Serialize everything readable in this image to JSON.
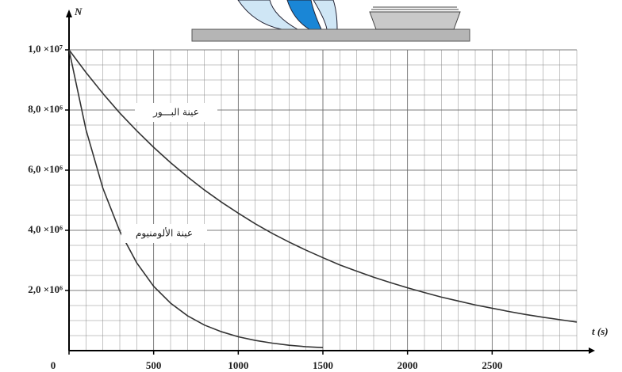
{
  "chart_data": {
    "type": "line",
    "x_label": "t (s)",
    "y_label": "N",
    "x": [
      0,
      100,
      200,
      300,
      400,
      500,
      600,
      700,
      800,
      900,
      1000,
      1100,
      1200,
      1300,
      1400,
      1500,
      1600,
      1700,
      1800,
      1900,
      2000,
      2100,
      2200,
      2300,
      2400,
      2500,
      2600,
      2700,
      2800,
      2900,
      3000
    ],
    "series": [
      {
        "name": "عينة البـــور",
        "color": "#333333",
        "values": [
          10000000,
          9250000,
          8550000,
          7900000,
          7310000,
          6760000,
          6250000,
          5780000,
          5340000,
          4940000,
          4570000,
          4220000,
          3900000,
          3610000,
          3340000,
          3090000,
          2850000,
          2640000,
          2440000,
          2260000,
          2090000,
          1930000,
          1780000,
          1650000,
          1520000,
          1410000,
          1300000,
          1200000,
          1110000,
          1030000,
          950000
        ]
      },
      {
        "name": "عينة الألومنيوم",
        "color": "#333333",
        "values": [
          10000000,
          7350000,
          5400000,
          3970000,
          2920000,
          2140000,
          1580000,
          1160000,
          850000,
          630000,
          460000,
          340000,
          250000,
          180000,
          130000,
          100000,
          null,
          null,
          null,
          null,
          null,
          null,
          null,
          null,
          null,
          null,
          null,
          null,
          null,
          null,
          null
        ]
      }
    ],
    "xlim": [
      0,
      3000
    ],
    "xticks": [
      0,
      500,
      1000,
      1500,
      2000,
      2500
    ],
    "ylim": [
      0,
      10000000
    ],
    "yticks": [
      {
        "value": 2000000,
        "label": "2,0 ×10⁶"
      },
      {
        "value": 4000000,
        "label": "4,0 ×10⁶"
      },
      {
        "value": 6000000,
        "label": "6,0 ×10⁶"
      },
      {
        "value": 8000000,
        "label": "8,0 ×10⁶"
      },
      {
        "value": 10000000,
        "label": "1,0 ×10⁷"
      }
    ],
    "grid": true
  }
}
